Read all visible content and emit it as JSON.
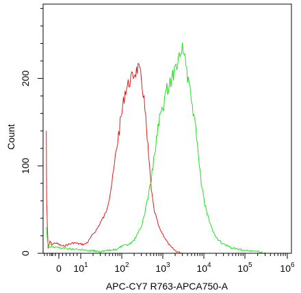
{
  "chart_data": {
    "type": "line",
    "title": "",
    "xlabel": "APC-CY7 R763-APCA750-A",
    "ylabel": "Count",
    "x_scale": "biexponential",
    "xlim": [
      0,
      1000000
    ],
    "ylim": [
      0,
      285
    ],
    "grid": false,
    "legend": "none",
    "x_ticks": [
      {
        "value": 0,
        "base": "0",
        "exp": ""
      },
      {
        "value": 10,
        "base": "10",
        "exp": "1"
      },
      {
        "value": 100,
        "base": "10",
        "exp": "2"
      },
      {
        "value": 1000,
        "base": "10",
        "exp": "3"
      },
      {
        "value": 10000,
        "base": "10",
        "exp": "4"
      },
      {
        "value": 100000,
        "base": "10",
        "exp": "5"
      },
      {
        "value": 1000000,
        "base": "10",
        "exp": "6"
      }
    ],
    "y_ticks": [
      0,
      100,
      200
    ],
    "series": [
      {
        "color": "#e41a1a",
        "points": [
          [
            0.5,
            140
          ],
          [
            0.6,
            60
          ],
          [
            1,
            5
          ],
          [
            1.5,
            14
          ],
          [
            2,
            10
          ],
          [
            3,
            12
          ],
          [
            5,
            8
          ],
          [
            8,
            12
          ],
          [
            12,
            10
          ],
          [
            15,
            13
          ],
          [
            20,
            22
          ],
          [
            25,
            28
          ],
          [
            30,
            35
          ],
          [
            40,
            45
          ],
          [
            50,
            65
          ],
          [
            60,
            85
          ],
          [
            70,
            110
          ],
          [
            80,
            130
          ],
          [
            100,
            160
          ],
          [
            120,
            185
          ],
          [
            150,
            195
          ],
          [
            200,
            205
          ],
          [
            250,
            212
          ],
          [
            300,
            200
          ],
          [
            350,
            175
          ],
          [
            400,
            140
          ],
          [
            450,
            110
          ],
          [
            500,
            85
          ],
          [
            550,
            65
          ],
          [
            600,
            50
          ],
          [
            700,
            40
          ],
          [
            800,
            30
          ],
          [
            1000,
            22
          ],
          [
            1200,
            15
          ],
          [
            1500,
            8
          ],
          [
            2000,
            3
          ],
          [
            2500,
            1
          ],
          [
            3000,
            0
          ]
        ]
      },
      {
        "color": "#1fe01f",
        "points": [
          [
            0.5,
            30
          ],
          [
            1,
            8
          ],
          [
            5,
            6
          ],
          [
            10,
            4
          ],
          [
            20,
            3
          ],
          [
            30,
            2
          ],
          [
            50,
            3
          ],
          [
            80,
            5
          ],
          [
            100,
            8
          ],
          [
            150,
            10
          ],
          [
            200,
            15
          ],
          [
            300,
            30
          ],
          [
            400,
            55
          ],
          [
            500,
            80
          ],
          [
            600,
            105
          ],
          [
            700,
            130
          ],
          [
            800,
            150
          ],
          [
            1000,
            165
          ],
          [
            1200,
            185
          ],
          [
            1500,
            195
          ],
          [
            2000,
            210
          ],
          [
            2500,
            228
          ],
          [
            3000,
            235
          ],
          [
            3500,
            225
          ],
          [
            4000,
            200
          ],
          [
            5000,
            175
          ],
          [
            6000,
            150
          ],
          [
            7000,
            120
          ],
          [
            8000,
            95
          ],
          [
            9000,
            75
          ],
          [
            10000,
            60
          ],
          [
            12000,
            45
          ],
          [
            15000,
            30
          ],
          [
            20000,
            18
          ],
          [
            30000,
            10
          ],
          [
            50000,
            6
          ],
          [
            100000,
            3
          ],
          [
            200000,
            2
          ],
          [
            300000,
            0
          ]
        ]
      }
    ]
  }
}
